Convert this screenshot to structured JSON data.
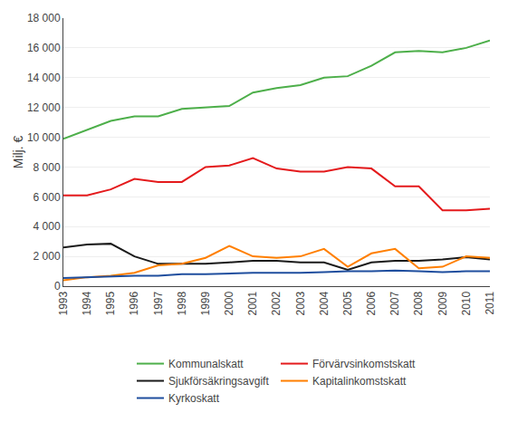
{
  "chart_data": {
    "type": "line",
    "x": [
      1993,
      1994,
      1995,
      1996,
      1997,
      1998,
      1999,
      2000,
      2001,
      2002,
      2003,
      2004,
      2005,
      2006,
      2007,
      2008,
      2009,
      2010,
      2011
    ],
    "series": [
      {
        "name": "Kommunalskatt",
        "color": "#4daf4a",
        "values": [
          9900,
          10500,
          11100,
          11400,
          11400,
          11900,
          12000,
          12100,
          13000,
          13300,
          13500,
          14000,
          14100,
          14800,
          15700,
          15800,
          15700,
          16000,
          16500
        ]
      },
      {
        "name": "Förvärvsinkomstskatt",
        "color": "#e41a1c",
        "values": [
          6100,
          6100,
          6500,
          7200,
          7000,
          7000,
          8000,
          8100,
          8600,
          7900,
          7700,
          7700,
          8000,
          7900,
          6700,
          6700,
          5100,
          5100,
          5200
        ]
      },
      {
        "name": "Sjukförsäkringsavgift",
        "color": "#1a1a1a",
        "values": [
          2600,
          2800,
          2850,
          2000,
          1500,
          1500,
          1500,
          1600,
          1700,
          1700,
          1600,
          1600,
          1100,
          1600,
          1700,
          1700,
          1800,
          1950,
          1800
        ]
      },
      {
        "name": "Kapitalinkomstskatt",
        "color": "#ff7f00",
        "values": [
          400,
          600,
          700,
          900,
          1400,
          1500,
          1900,
          2700,
          2000,
          1900,
          2000,
          2500,
          1300,
          2200,
          2500,
          1200,
          1300,
          2000,
          1900
        ]
      },
      {
        "name": "Kyrkoskatt",
        "color": "#1f4e9e",
        "values": [
          550,
          600,
          650,
          700,
          700,
          800,
          800,
          850,
          900,
          900,
          900,
          950,
          1000,
          1000,
          1050,
          1000,
          950,
          1000,
          1000
        ]
      }
    ],
    "ylabel": "Milj. €",
    "xlim": [
      1993,
      2011
    ],
    "xticks": [
      1993,
      1994,
      1995,
      1996,
      1997,
      1998,
      1999,
      2000,
      2001,
      2002,
      2003,
      2004,
      2005,
      2006,
      2007,
      2008,
      2009,
      2010,
      2011
    ],
    "ylim": [
      0,
      18000
    ],
    "yticks": [
      0,
      {
        "value": 2000,
        "label": "2 000"
      },
      {
        "value": 4000,
        "label": "4 000"
      },
      {
        "value": 6000,
        "label": "6 000"
      },
      {
        "value": 8000,
        "label": "8 000"
      },
      {
        "value": 10000,
        "label": "10 000"
      },
      {
        "value": 12000,
        "label": "12 000"
      },
      {
        "value": 14000,
        "label": "14 000"
      },
      {
        "value": 16000,
        "label": "16 000"
      },
      {
        "value": 18000,
        "label": "18 000"
      }
    ],
    "grid": "y",
    "legend": "bottom"
  }
}
